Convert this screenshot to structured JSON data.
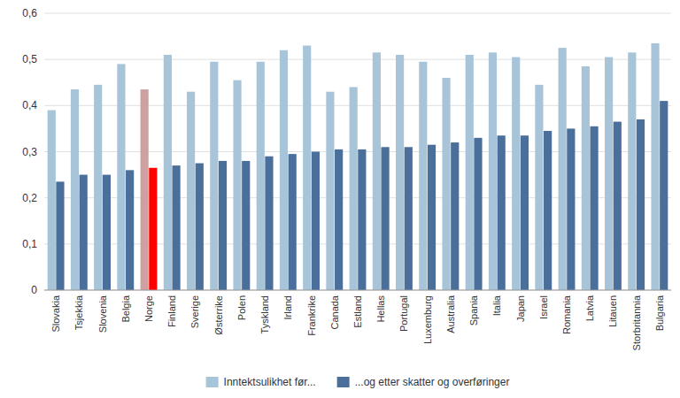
{
  "chart_data": {
    "type": "bar",
    "categories": [
      "Slovakia",
      "Tsjekkia",
      "Slovenia",
      "Belgia",
      "Norge",
      "Finland",
      "Sverige",
      "Østerrike",
      "Polen",
      "Tyskland",
      "Irland",
      "Frankrike",
      "Canada",
      "Estland",
      "Hellas",
      "Portugal",
      "Luxemburg",
      "Australia",
      "Spania",
      "Italia",
      "Japan",
      "Israel",
      "Romania",
      "Latvia",
      "Litauen",
      "Storbritannia",
      "Bulgaria"
    ],
    "series": [
      {
        "name": "Inntektsulikhet før...",
        "color": "#a8c4d8",
        "colors": [
          "#a8c4d8",
          "#a8c4d8",
          "#a8c4d8",
          "#a8c4d8",
          "#cfa0a0",
          "#a8c4d8",
          "#a8c4d8",
          "#a8c4d8",
          "#a8c4d8",
          "#a8c4d8",
          "#a8c4d8",
          "#a8c4d8",
          "#a8c4d8",
          "#a8c4d8",
          "#a8c4d8",
          "#a8c4d8",
          "#a8c4d8",
          "#a8c4d8",
          "#a8c4d8",
          "#a8c4d8",
          "#a8c4d8",
          "#a8c4d8",
          "#a8c4d8",
          "#a8c4d8",
          "#a8c4d8",
          "#a8c4d8",
          "#a8c4d8"
        ],
        "values": [
          0.39,
          0.435,
          0.445,
          0.49,
          0.435,
          0.51,
          0.43,
          0.495,
          0.455,
          0.495,
          0.52,
          0.53,
          0.43,
          0.44,
          0.515,
          0.51,
          0.495,
          0.46,
          0.51,
          0.515,
          0.505,
          0.445,
          0.525,
          0.485,
          0.505,
          0.515,
          0.535
        ]
      },
      {
        "name": "...og etter skatter og overføringer",
        "color": "#4a6f9b",
        "colors": [
          "#4a6f9b",
          "#4a6f9b",
          "#4a6f9b",
          "#4a6f9b",
          "#ff0000",
          "#4a6f9b",
          "#4a6f9b",
          "#4a6f9b",
          "#4a6f9b",
          "#4a6f9b",
          "#4a6f9b",
          "#4a6f9b",
          "#4a6f9b",
          "#4a6f9b",
          "#4a6f9b",
          "#4a6f9b",
          "#4a6f9b",
          "#4a6f9b",
          "#4a6f9b",
          "#4a6f9b",
          "#4a6f9b",
          "#4a6f9b",
          "#4a6f9b",
          "#4a6f9b",
          "#4a6f9b",
          "#4a6f9b",
          "#4a6f9b"
        ],
        "values": [
          0.235,
          0.25,
          0.25,
          0.26,
          0.265,
          0.27,
          0.275,
          0.28,
          0.28,
          0.29,
          0.295,
          0.3,
          0.305,
          0.305,
          0.31,
          0.31,
          0.315,
          0.32,
          0.33,
          0.335,
          0.335,
          0.345,
          0.35,
          0.355,
          0.365,
          0.37,
          0.41
        ]
      }
    ],
    "ylim": [
      0,
      0.6
    ],
    "yticks": [
      0,
      {
        "value": 0.1,
        "label": "0,1"
      },
      {
        "value": 0.2,
        "label": "0,2"
      },
      {
        "value": 0.3,
        "label": "0,3"
      },
      {
        "value": 0.4,
        "label": "0,4"
      },
      {
        "value": 0.5,
        "label": "0,5"
      },
      {
        "value": 0.6,
        "label": "0,6"
      }
    ],
    "grid": true,
    "legend": "bottom"
  }
}
